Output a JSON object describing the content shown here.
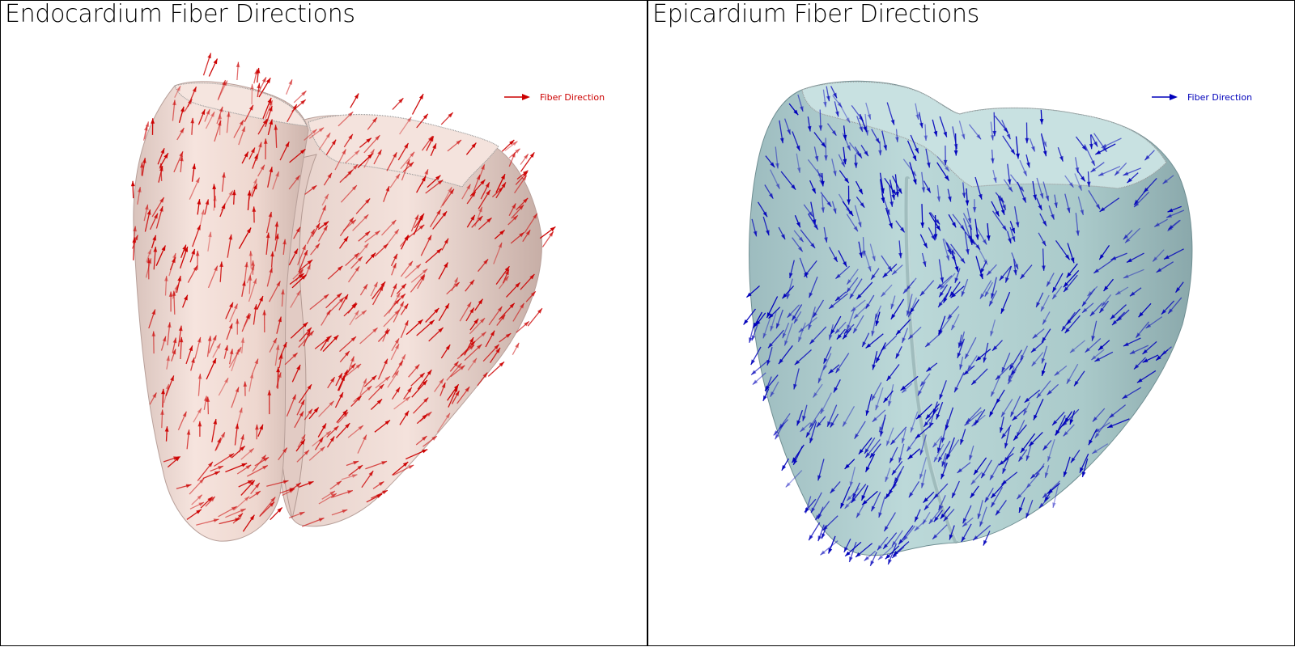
{
  "viewports": [
    {
      "id": "left",
      "title": "Endocardium Fiber Directions",
      "legend_label": "Fiber Direction",
      "arrow_color": "#cc0000",
      "surface_color": "#f2ddd6",
      "surface_shade": "#c9b0a8"
    },
    {
      "id": "right",
      "title": "Epicardium Fiber Directions",
      "legend_label": "Fiber Direction",
      "arrow_color": "#0000bb",
      "surface_color": "#b4d2d2",
      "surface_shade": "#8aa9ad"
    }
  ]
}
